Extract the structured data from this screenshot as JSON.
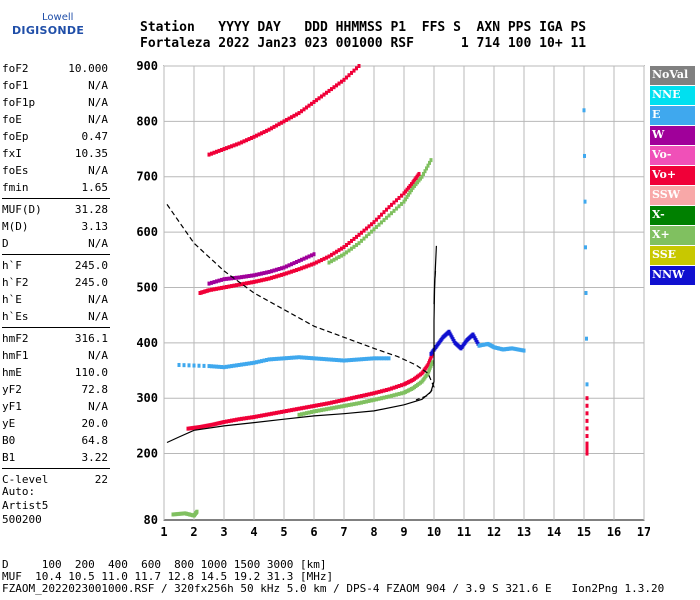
{
  "logo": {
    "line1": "Lowell",
    "line2": "DIGISONDE"
  },
  "header": {
    "line1": "Station   YYYY DAY   DDD HHMMSS P1  FFS S  AXN PPS IGA PS",
    "line2": "Fortaleza 2022 Jan23 023 001000 RSF      1 714 100 10+ 11"
  },
  "params": [
    [
      {
        "label": "foF2",
        "value": "10.000"
      },
      {
        "label": "foF1",
        "value": "N/A"
      },
      {
        "label": "foF1p",
        "value": "N/A"
      },
      {
        "label": "foE",
        "value": "N/A"
      },
      {
        "label": "foEp",
        "value": "0.47"
      },
      {
        "label": "fxI",
        "value": "10.35"
      },
      {
        "label": "foEs",
        "value": "N/A"
      },
      {
        "label": "fmin",
        "value": "1.65"
      }
    ],
    [
      {
        "label": "MUF(D)",
        "value": "31.28"
      },
      {
        "label": "M(D)",
        "value": "3.13"
      },
      {
        "label": "D",
        "value": "N/A"
      }
    ],
    [
      {
        "label": "h`F",
        "value": "245.0"
      },
      {
        "label": "h`F2",
        "value": "245.0"
      },
      {
        "label": "h`E",
        "value": "N/A"
      },
      {
        "label": "h`Es",
        "value": "N/A"
      }
    ],
    [
      {
        "label": "hmF2",
        "value": "316.1"
      },
      {
        "label": "hmF1",
        "value": "N/A"
      },
      {
        "label": "hmE",
        "value": "110.0"
      },
      {
        "label": "yF2",
        "value": "72.8"
      },
      {
        "label": "yF1",
        "value": "N/A"
      },
      {
        "label": "yE",
        "value": "20.0"
      },
      {
        "label": "B0",
        "value": "64.8"
      },
      {
        "label": "B1",
        "value": "3.22"
      }
    ],
    [
      {
        "label": "C-level",
        "value": "22"
      }
    ]
  ],
  "auto": {
    "line1": "Auto:",
    "line2": "Artist5",
    "line3": "500200"
  },
  "legend": [
    {
      "label": "NoVal",
      "color": "#808080"
    },
    {
      "label": "NNE",
      "color": "#00e0f0"
    },
    {
      "label": "E",
      "color": "#3fa8ee"
    },
    {
      "label": "W",
      "color": "#a0009a"
    },
    {
      "label": "Vo-",
      "color": "#f050b8"
    },
    {
      "label": "Vo+",
      "color": "#f00038"
    },
    {
      "label": "SSW",
      "color": "#f8a8a8"
    },
    {
      "label": "X-",
      "color": "#008000"
    },
    {
      "label": "X+",
      "color": "#80c060"
    },
    {
      "label": "SSE",
      "color": "#c8c800"
    },
    {
      "label": "NNW",
      "color": "#1010d0"
    }
  ],
  "footer": {
    "line1": "D     100  200  400  600  800 1000 1500 3000 [km]",
    "line2": "MUF  10.4 10.5 11.0 11.7 12.8 14.5 19.2 31.3 [MHz]",
    "line3": "FZAOM_2022023001000.RSF / 320fx256h 50 kHz 5.0 km / DPS-4 FZAOM 904 / 3.9 S 321.6 E   Ion2Png 1.3.20"
  },
  "chart_data": {
    "type": "scatter",
    "xlim": [
      1,
      17
    ],
    "ylim": [
      80,
      900
    ],
    "xticks": [
      1,
      2,
      3,
      4,
      5,
      6,
      7,
      8,
      9,
      10,
      11,
      12,
      13,
      14,
      15,
      16,
      17
    ],
    "yticks": [
      80,
      200,
      300,
      400,
      500,
      600,
      700,
      800,
      900
    ],
    "grid": true,
    "traces": [
      {
        "name": "Vo+",
        "color": "#f00038",
        "x": [
          1.8,
          2.2,
          2.6,
          3.0,
          3.5,
          4.0,
          4.5,
          5.0,
          5.5,
          6.0,
          6.5,
          7.0,
          7.5,
          8.0,
          8.5,
          9.0,
          9.3,
          9.6,
          9.8,
          9.95
        ],
        "y": [
          245,
          248,
          252,
          257,
          262,
          266,
          271,
          276,
          281,
          286,
          291,
          297,
          303,
          309,
          316,
          325,
          333,
          345,
          360,
          380
        ]
      },
      {
        "name": "X+",
        "color": "#80c060",
        "x": [
          5.5,
          6.0,
          6.5,
          7.0,
          7.5,
          8.0,
          8.5,
          9.0,
          9.3,
          9.6,
          9.8,
          9.95
        ],
        "y": [
          270,
          276,
          281,
          286,
          291,
          297,
          303,
          310,
          318,
          330,
          345,
          365
        ]
      },
      {
        "name": "Vo+",
        "color": "#f00038",
        "x": [
          2.2,
          2.5,
          3.0,
          3.5,
          4.0,
          4.5,
          5.0,
          5.5,
          6.0,
          6.5,
          7.0,
          7.5,
          8.0,
          8.5,
          9.0,
          9.3,
          9.5
        ],
        "y": [
          490,
          495,
          500,
          505,
          510,
          516,
          524,
          533,
          543,
          556,
          573,
          595,
          618,
          645,
          670,
          690,
          705
        ]
      },
      {
        "name": "X+",
        "color": "#80c060",
        "x": [
          6.5,
          7.0,
          7.5,
          8.0,
          8.5,
          9.0,
          9.3,
          9.6,
          9.9
        ],
        "y": [
          545,
          560,
          580,
          605,
          630,
          655,
          680,
          700,
          730
        ]
      },
      {
        "name": "Vo+",
        "color": "#f00038",
        "x": [
          2.5,
          3.0,
          3.5,
          4.0,
          4.5,
          5.0,
          5.5,
          6.0,
          6.5,
          7.0,
          7.5
        ],
        "y": [
          740,
          750,
          760,
          772,
          785,
          800,
          815,
          835,
          855,
          875,
          900
        ]
      },
      {
        "name": "W",
        "color": "#a0009a",
        "x": [
          2.5,
          3.0,
          3.5,
          4.0,
          4.5,
          5.0,
          5.5,
          6.0
        ],
        "y": [
          507,
          515,
          518,
          522,
          528,
          536,
          548,
          560
        ]
      },
      {
        "name": "E",
        "color": "#3fa8ee",
        "x": [
          1.5,
          2.5,
          3.0,
          3.5,
          4.0,
          4.5,
          5.0,
          5.5,
          6.0,
          6.5,
          7.0,
          7.5,
          8.0,
          8.5
        ],
        "y": [
          360,
          358,
          356,
          360,
          364,
          370,
          372,
          374,
          372,
          370,
          368,
          370,
          372,
          372
        ]
      },
      {
        "name": "NNW",
        "color": "#1010d0",
        "x": [
          9.9,
          10.1,
          10.3,
          10.5,
          10.7,
          10.9,
          11.1,
          11.3,
          11.5
        ],
        "y": [
          380,
          395,
          410,
          420,
          400,
          390,
          405,
          415,
          395
        ]
      },
      {
        "name": "E",
        "color": "#3fa8ee",
        "x": [
          11.5,
          11.8,
          12.0,
          12.3,
          12.6,
          13.0
        ],
        "y": [
          395,
          398,
          392,
          388,
          390,
          386
        ]
      },
      {
        "name": "X+",
        "color": "#80c060",
        "x": [
          1.3,
          1.7,
          2.0,
          2.1
        ],
        "y": [
          90,
          92,
          88,
          95
        ]
      },
      {
        "name": "Vo+",
        "color": "#f00038",
        "x": [
          15.1,
          15.1,
          15.1
        ],
        "y": [
          300,
          218,
          200
        ]
      },
      {
        "name": "E",
        "color": "#3fa8ee",
        "x": [
          15.0,
          15.1
        ],
        "y": [
          820,
          325
        ]
      }
    ],
    "lines": [
      {
        "name": "profile",
        "style": "solid",
        "x": [
          1.1,
          1.5,
          2.0,
          3.0,
          4.0,
          5.0,
          6.0,
          7.0,
          8.0,
          9.0,
          9.6,
          9.9,
          10.0,
          10.0,
          10.0,
          10.02,
          10.05,
          10.08
        ],
        "y": [
          220,
          230,
          242,
          250,
          256,
          262,
          268,
          272,
          277,
          288,
          298,
          312,
          330,
          380,
          440,
          500,
          540,
          575
        ]
      },
      {
        "name": "topside",
        "style": "dashed",
        "x": [
          1.1,
          2.0,
          3.0,
          4.0,
          5.0,
          6.0,
          7.0,
          8.0,
          8.8,
          9.4,
          9.8,
          10.0,
          9.8,
          9.4
        ],
        "y": [
          650,
          580,
          530,
          490,
          460,
          430,
          410,
          390,
          375,
          360,
          345,
          320,
          305,
          297
        ]
      },
      {
        "name": "Vo-",
        "style": "solid",
        "x": [
          10.0,
          10.02,
          10.05
        ],
        "y": [
          470,
          510,
          530
        ]
      }
    ]
  }
}
